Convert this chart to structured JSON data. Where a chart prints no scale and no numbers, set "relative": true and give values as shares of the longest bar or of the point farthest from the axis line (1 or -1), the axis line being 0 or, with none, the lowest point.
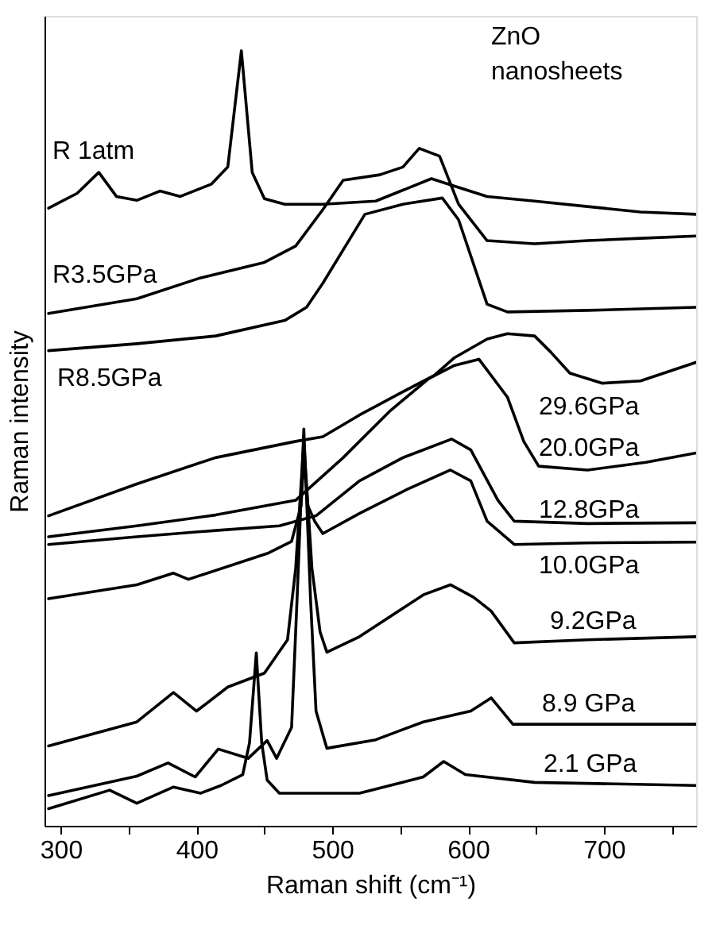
{
  "chart_data": {
    "type": "line",
    "relative": true,
    "xlabel": "Raman shift (cm⁻¹)",
    "ylabel": "Raman intensity",
    "xlim": [
      288,
      768
    ],
    "xticks": [
      300,
      {
        "value": 350,
        "label": null
      },
      400,
      {
        "value": 450,
        "label": null
      },
      500,
      {
        "value": 550,
        "label": null
      },
      600,
      {
        "value": 650,
        "label": null
      },
      700,
      {
        "value": 750,
        "label": null
      }
    ],
    "grid": false,
    "legend": false,
    "line_style": "solid",
    "marker": "none",
    "series": [
      {
        "color": "#000000",
        "x": [
          291,
          312,
          328,
          341,
          356,
          373,
          388,
          411,
          423,
          433,
          441,
          450,
          465,
          493,
          532,
          573,
          587,
          614,
          649,
          688,
          727,
          768
        ],
        "values": [
          0.797,
          0.816,
          0.843,
          0.812,
          0.807,
          0.819,
          0.812,
          0.828,
          0.85,
          1.0,
          0.843,
          0.809,
          0.802,
          0.802,
          0.806,
          0.835,
          0.827,
          0.812,
          0.806,
          0.799,
          0.792,
          0.789
        ]
      },
      {
        "color": "#000000",
        "x": [
          291,
          356,
          403,
          450,
          473,
          493,
          508,
          535,
          552,
          564,
          579,
          593,
          614,
          649,
          688,
          727,
          768
        ],
        "values": [
          0.661,
          0.68,
          0.707,
          0.727,
          0.748,
          0.795,
          0.833,
          0.84,
          0.85,
          0.874,
          0.864,
          0.802,
          0.755,
          0.751,
          0.755,
          0.758,
          0.761
        ]
      },
      {
        "color": "#000000",
        "x": [
          291,
          356,
          414,
          465,
          481,
          493,
          524,
          552,
          581,
          593,
          614,
          629,
          688,
          768
        ],
        "values": [
          0.613,
          0.622,
          0.632,
          0.652,
          0.669,
          0.7,
          0.789,
          0.802,
          0.81,
          0.782,
          0.673,
          0.663,
          0.665,
          0.669
        ]
      },
      {
        "color": "#000000",
        "x": [
          291,
          356,
          414,
          473,
          493,
          520,
          552,
          575,
          590,
          614,
          629,
          649,
          661,
          675,
          699,
          727,
          768
        ],
        "values": [
          0.4,
          0.441,
          0.475,
          0.496,
          0.502,
          0.53,
          0.56,
          0.581,
          0.604,
          0.628,
          0.635,
          0.632,
          0.611,
          0.584,
          0.571,
          0.574,
          0.598
        ]
      },
      {
        "color": "#000000",
        "x": [
          291,
          356,
          414,
          473,
          508,
          543,
          571,
          590,
          608,
          629,
          641,
          652,
          688,
          731,
          768
        ],
        "values": [
          0.373,
          0.387,
          0.401,
          0.42,
          0.475,
          0.536,
          0.577,
          0.594,
          0.602,
          0.553,
          0.496,
          0.464,
          0.459,
          0.469,
          0.481
        ]
      },
      {
        "color": "#000000",
        "x": [
          291,
          356,
          414,
          461,
          488,
          520,
          552,
          588,
          602,
          622,
          634,
          688,
          768
        ],
        "values": [
          0.363,
          0.373,
          0.381,
          0.387,
          0.4,
          0.445,
          0.475,
          0.499,
          0.485,
          0.42,
          0.393,
          0.39,
          0.391
        ]
      },
      {
        "color": "#000000",
        "x": [
          291,
          356,
          383,
          394,
          453,
          470,
          477,
          479,
          482,
          487,
          493,
          520,
          555,
          587,
          602,
          614,
          634,
          688,
          768
        ],
        "values": [
          0.293,
          0.311,
          0.326,
          0.318,
          0.352,
          0.367,
          0.413,
          0.475,
          0.413,
          0.393,
          0.377,
          0.403,
          0.434,
          0.459,
          0.445,
          0.393,
          0.363,
          0.365,
          0.366
        ]
      },
      {
        "color": "#000000",
        "x": [
          291,
          356,
          383,
          400,
          423,
          450,
          467,
          473,
          479,
          485,
          491,
          496,
          520,
          567,
          587,
          604,
          617,
          634,
          688,
          768
        ],
        "values": [
          0.103,
          0.134,
          0.172,
          0.148,
          0.179,
          0.197,
          0.24,
          0.332,
          0.496,
          0.332,
          0.25,
          0.224,
          0.244,
          0.298,
          0.311,
          0.295,
          0.277,
          0.236,
          0.24,
          0.244
        ]
      },
      {
        "color": "#000000",
        "x": [
          291,
          356,
          379,
          399,
          416,
          438,
          452,
          459,
          470,
          474,
          479,
          484,
          488,
          496,
          532,
          567,
          602,
          617,
          633,
          688,
          768
        ],
        "values": [
          0.039,
          0.064,
          0.081,
          0.063,
          0.099,
          0.087,
          0.11,
          0.087,
          0.127,
          0.291,
          0.512,
          0.291,
          0.148,
          0.1,
          0.111,
          0.134,
          0.148,
          0.165,
          0.131,
          0.131,
          0.131
        ]
      },
      {
        "color": "#000000",
        "x": [
          291,
          336,
          356,
          383,
          403,
          418,
          434,
          439,
          444,
          448,
          452,
          461,
          520,
          567,
          582,
          598,
          649,
          768
        ],
        "values": [
          0.022,
          0.046,
          0.029,
          0.05,
          0.042,
          0.052,
          0.066,
          0.107,
          0.223,
          0.107,
          0.059,
          0.042,
          0.042,
          0.063,
          0.083,
          0.066,
          0.056,
          0.052
        ]
      }
    ],
    "annotations": [
      "ZnO\nnanosheets",
      "R 1atm",
      "R3.5GPa",
      "R8.5GPa",
      "29.6GPa",
      "20.0GPa",
      "12.8GPa",
      "10.0GPa",
      "9.2GPa",
      "8.9 GPa",
      "2.1 GPa"
    ]
  }
}
